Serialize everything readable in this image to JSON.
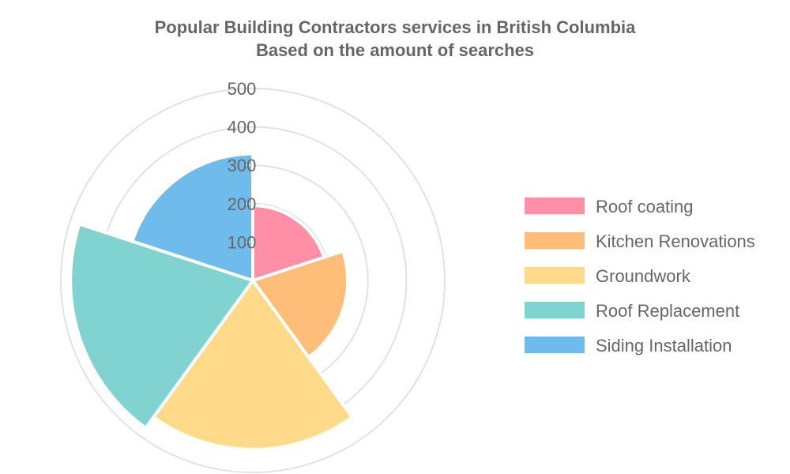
{
  "chart_data": {
    "type": "polar-area",
    "title": "Popular Building Contractors services in British Columbia",
    "subtitle": "Based on the amount of searches",
    "rmax": 500,
    "ticks": [
      100,
      200,
      300,
      400,
      500
    ],
    "tick_labels": [
      "100",
      "200",
      "300",
      "400",
      "500"
    ],
    "grid": true,
    "legend_position": "right",
    "categories": [
      "Roof coating",
      "Kitchen Renovations",
      "Groundwork",
      "Roof Replacement",
      "Siding Installation"
    ],
    "values": [
      195,
      247,
      440,
      475,
      330
    ],
    "colors": [
      "#ff8fa6",
      "#ffbd7a",
      "#ffda8a",
      "#80d3d1",
      "#6fbbec"
    ]
  }
}
